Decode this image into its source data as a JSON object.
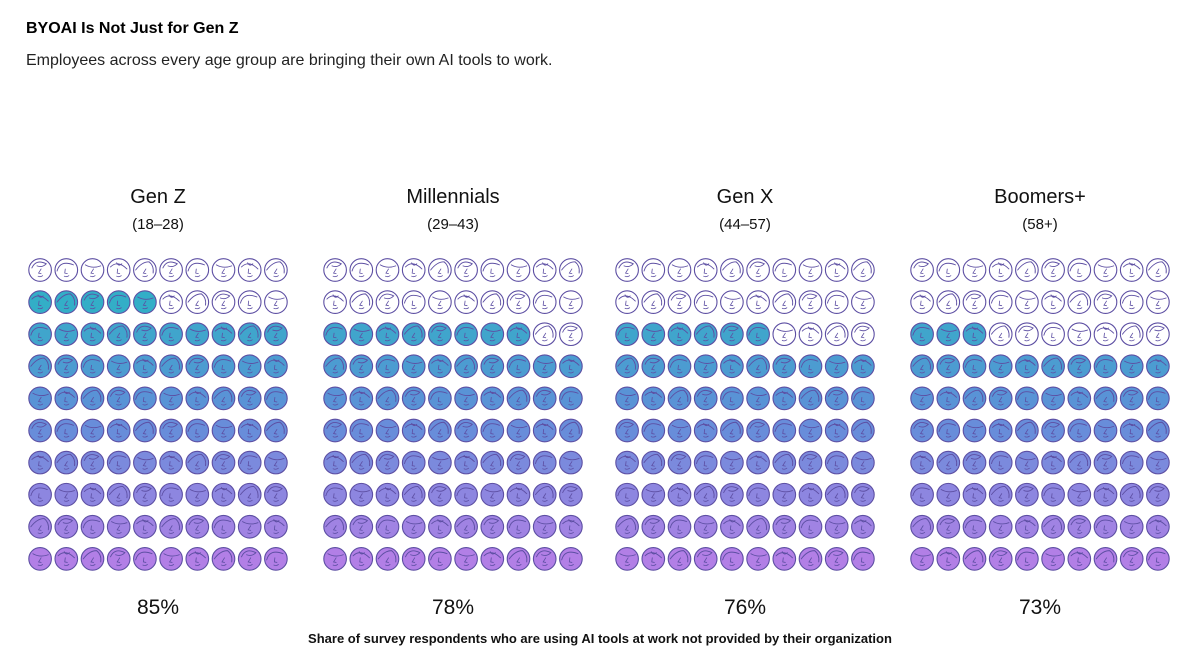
{
  "header": {
    "title": "BYOAI Is Not Just for Gen Z",
    "subtitle": "Employees across every age group are bringing their own AI tools to work."
  },
  "chart_data": {
    "type": "waffle",
    "title": "BYOAI Is Not Just for Gen Z",
    "subtitle": "Employees across every age group are bringing their own AI tools to work.",
    "caption": "Share of survey respondents who are using AI tools at work not provided by their organization",
    "unit": "%",
    "grid": {
      "rows": 10,
      "cols": 10
    },
    "fill_order": "bottom-up",
    "series": [
      {
        "name": "Gen Z",
        "range": "(18–28)",
        "value": 85,
        "label": "85%"
      },
      {
        "name": "Millennials",
        "range": "(29–43)",
        "value": 78,
        "label": "78%"
      },
      {
        "name": "Gen X",
        "range": "(44–57)",
        "value": 76,
        "label": "76%"
      },
      {
        "name": "Boomers+",
        "range": "(58+)",
        "value": 73,
        "label": "73%"
      }
    ],
    "colors": {
      "outline": "#5d4fa3",
      "gradient_top": "#27b7c2",
      "gradient_mid": "#5f8fd8",
      "gradient_bottom": "#b27fe6",
      "empty_fill": "#ffffff"
    }
  }
}
